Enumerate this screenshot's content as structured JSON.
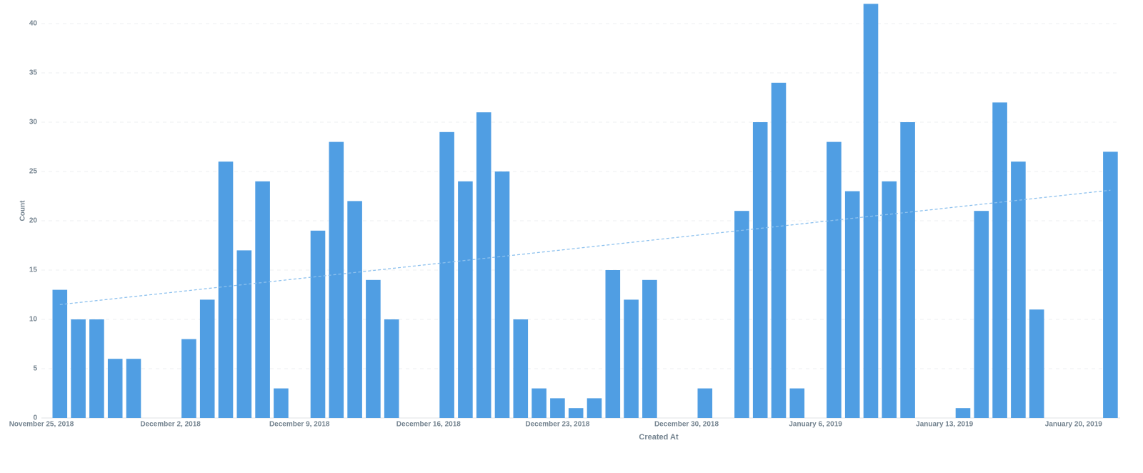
{
  "chart_data": {
    "type": "bar",
    "x_label": "Created At",
    "y_label": "Count",
    "categories": [
      "November 25, 2018",
      null,
      null,
      null,
      null,
      null,
      null,
      "December 2, 2018",
      null,
      null,
      null,
      null,
      null,
      null,
      "December 9, 2018",
      null,
      null,
      null,
      null,
      null,
      null,
      "December 16, 2018",
      null,
      null,
      null,
      null,
      null,
      null,
      "December 23, 2018",
      null,
      null,
      null,
      null,
      null,
      null,
      "December 30, 2018",
      null,
      null,
      null,
      null,
      null,
      null,
      "January 6, 2019",
      null,
      null,
      null,
      null,
      null,
      null,
      "January 13, 2019",
      null,
      null,
      null,
      null,
      null,
      null,
      "January 20, 2019",
      null,
      null
    ],
    "values": [
      null,
      13,
      10,
      10,
      6,
      6,
      null,
      null,
      8,
      12,
      26,
      17,
      24,
      3,
      null,
      19,
      28,
      22,
      14,
      10,
      null,
      null,
      29,
      24,
      31,
      25,
      10,
      3,
      2,
      1,
      2,
      15,
      12,
      14,
      null,
      null,
      3,
      null,
      21,
      30,
      34,
      3,
      null,
      28,
      23,
      42,
      24,
      30,
      null,
      null,
      1,
      21,
      32,
      26,
      11,
      null,
      null,
      null,
      27
    ],
    "color": "#509ee3",
    "trend": {
      "values": [
        11.5,
        23.1
      ],
      "color": "#8dc1ee"
    },
    "ylim": [
      0,
      42
    ],
    "yticks": [
      0,
      5,
      10,
      15,
      20,
      25,
      30,
      35,
      40
    ],
    "grid": true
  }
}
